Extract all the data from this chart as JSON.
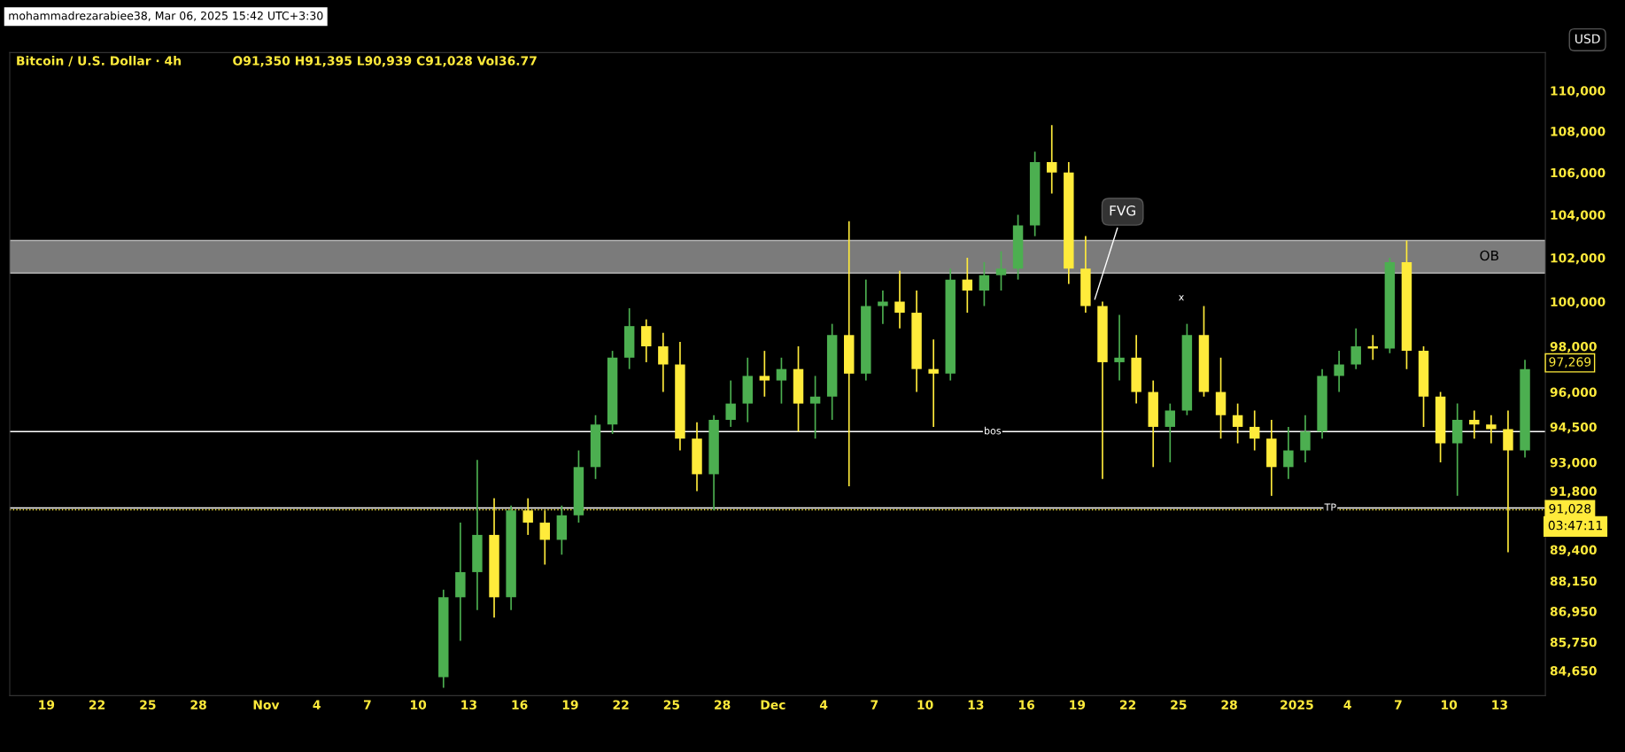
{
  "chart_data": {
    "type": "candlestick",
    "title": "Bitcoin / U.S. Dollar · 4h",
    "subtitle": "O91,350 H91,395 L90,939 C91,028 Vol36.77",
    "x": [
      "2024-11-11T12:00",
      "2024-11-12T12:00",
      "2024-11-13T12:00",
      "2024-11-14T12:00",
      "2024-11-15T12:00",
      "2024-11-16T12:00",
      "2024-11-17T12:00",
      "2024-11-18T12:00",
      "2024-11-19T12:00",
      "2024-11-20T12:00",
      "2024-11-21T12:00",
      "2024-11-22T12:00",
      "2024-11-23T12:00",
      "2024-11-24T12:00",
      "2024-11-25T12:00",
      "2024-11-26T12:00",
      "2024-11-27T12:00",
      "2024-11-28T12:00",
      "2024-11-29T12:00",
      "2024-11-30T12:00",
      "2024-12-01T12:00",
      "2024-12-02T12:00",
      "2024-12-03T12:00",
      "2024-12-04T12:00",
      "2024-12-05T12:00",
      "2024-12-06T12:00",
      "2024-12-07T12:00",
      "2024-12-08T12:00",
      "2024-12-09T12:00",
      "2024-12-10T12:00",
      "2024-12-11T12:00",
      "2024-12-12T12:00",
      "2024-12-13T12:00",
      "2024-12-14T12:00",
      "2024-12-15T12:00",
      "2024-12-16T12:00",
      "2024-12-17T12:00",
      "2024-12-18T12:00",
      "2024-12-19T12:00",
      "2024-12-20T12:00",
      "2024-12-21T12:00",
      "2024-12-22T12:00",
      "2024-12-23T12:00",
      "2024-12-24T12:00",
      "2024-12-25T12:00",
      "2024-12-26T12:00",
      "2024-12-27T12:00",
      "2024-12-28T12:00",
      "2024-12-29T12:00",
      "2024-12-30T12:00",
      "2024-12-31T12:00",
      "2025-01-01T12:00",
      "2025-01-02T12:00",
      "2025-01-03T12:00",
      "2025-01-04T12:00",
      "2025-01-05T12:00",
      "2025-01-06T12:00",
      "2025-01-07T12:00",
      "2025-01-08T12:00",
      "2025-01-09T12:00",
      "2025-01-10T12:00",
      "2025-01-11T12:00",
      "2025-01-12T12:00",
      "2025-01-13T12:00",
      "2025-01-14T12:00"
    ],
    "ohlc": [
      [
        84400,
        87800,
        84000,
        87500
      ],
      [
        87500,
        90500,
        85800,
        88500
      ],
      [
        88500,
        93100,
        87000,
        90000
      ],
      [
        90000,
        91500,
        86700,
        87500
      ],
      [
        87500,
        91200,
        87000,
        91000
      ],
      [
        91000,
        91500,
        90000,
        90500
      ],
      [
        90500,
        91000,
        88800,
        89800
      ],
      [
        89800,
        91200,
        89200,
        90800
      ],
      [
        90800,
        93500,
        90500,
        92800
      ],
      [
        92800,
        95000,
        92300,
        94600
      ],
      [
        94600,
        97800,
        94200,
        97500
      ],
      [
        97500,
        99700,
        97000,
        98900
      ],
      [
        98900,
        99200,
        97300,
        98000
      ],
      [
        98000,
        98600,
        96000,
        97200
      ],
      [
        97200,
        98200,
        93500,
        94000
      ],
      [
        94000,
        94700,
        91800,
        92500
      ],
      [
        92500,
        95000,
        91000,
        94800
      ],
      [
        94800,
        96500,
        94500,
        95500
      ],
      [
        95500,
        97500,
        94700,
        96700
      ],
      [
        96700,
        97800,
        95800,
        96500
      ],
      [
        96500,
        97500,
        95500,
        97000
      ],
      [
        97000,
        98000,
        94300,
        95500
      ],
      [
        95500,
        96700,
        94000,
        95800
      ],
      [
        95800,
        99000,
        94800,
        98500
      ],
      [
        98500,
        103700,
        92000,
        96800
      ],
      [
        96800,
        101000,
        96500,
        99800
      ],
      [
        99800,
        100500,
        99000,
        100000
      ],
      [
        100000,
        101400,
        98800,
        99500
      ],
      [
        99500,
        100500,
        96000,
        97000
      ],
      [
        97000,
        98300,
        94500,
        96800
      ],
      [
        96800,
        101500,
        96500,
        101000
      ],
      [
        101000,
        102000,
        99500,
        100500
      ],
      [
        100500,
        101800,
        99800,
        101200
      ],
      [
        101200,
        102300,
        100500,
        101500
      ],
      [
        101500,
        104000,
        101000,
        103500
      ],
      [
        103500,
        107000,
        103000,
        106500
      ],
      [
        106500,
        108300,
        105000,
        106000
      ],
      [
        106000,
        106500,
        100800,
        101500
      ],
      [
        101500,
        103000,
        99500,
        99800
      ],
      [
        99800,
        100000,
        92300,
        97300
      ],
      [
        97300,
        99400,
        96500,
        97500
      ],
      [
        97500,
        98500,
        95500,
        96000
      ],
      [
        96000,
        96500,
        92800,
        94500
      ],
      [
        94500,
        95500,
        93000,
        95200
      ],
      [
        95200,
        99000,
        95000,
        98500
      ],
      [
        98500,
        99800,
        95800,
        96000
      ],
      [
        96000,
        97500,
        94000,
        95000
      ],
      [
        95000,
        95500,
        93800,
        94500
      ],
      [
        94500,
        95200,
        93500,
        94000
      ],
      [
        94000,
        94800,
        91600,
        92800
      ],
      [
        92800,
        94500,
        92300,
        93500
      ],
      [
        93500,
        95000,
        93000,
        94300
      ],
      [
        94300,
        97000,
        94000,
        96700
      ],
      [
        96700,
        97800,
        96000,
        97200
      ],
      [
        97200,
        98800,
        97000,
        98000
      ],
      [
        98000,
        98500,
        97400,
        97900
      ],
      [
        97900,
        102000,
        97700,
        101800
      ],
      [
        101800,
        102800,
        97000,
        97800
      ],
      [
        97800,
        98000,
        94500,
        95800
      ],
      [
        95800,
        96000,
        93000,
        93800
      ],
      [
        93800,
        95500,
        91600,
        94800
      ],
      [
        94800,
        95200,
        94000,
        94600
      ],
      [
        94600,
        95000,
        93800,
        94400
      ],
      [
        94400,
        95200,
        89300,
        93500
      ],
      [
        93500,
        97400,
        93200,
        97000
      ]
    ],
    "colors": [
      "#4caf50",
      "#4caf50",
      "#4caf50",
      "#ffeb3b",
      "#4caf50",
      "#ffeb3b",
      "#ffeb3b",
      "#4caf50",
      "#4caf50",
      "#4caf50",
      "#4caf50",
      "#4caf50",
      "#ffeb3b",
      "#ffeb3b",
      "#ffeb3b",
      "#ffeb3b",
      "#4caf50",
      "#4caf50",
      "#4caf50",
      "#ffeb3b",
      "#4caf50",
      "#ffeb3b",
      "#4caf50",
      "#4caf50",
      "#ffeb3b",
      "#4caf50",
      "#4caf50",
      "#ffeb3b",
      "#ffeb3b",
      "#ffeb3b",
      "#4caf50",
      "#ffeb3b",
      "#4caf50",
      "#4caf50",
      "#4caf50",
      "#4caf50",
      "#ffeb3b",
      "#ffeb3b",
      "#ffeb3b",
      "#ffeb3b",
      "#4caf50",
      "#ffeb3b",
      "#ffeb3b",
      "#4caf50",
      "#4caf50",
      "#ffeb3b",
      "#ffeb3b",
      "#ffeb3b",
      "#ffeb3b",
      "#ffeb3b",
      "#4caf50",
      "#4caf50",
      "#4caf50",
      "#4caf50",
      "#4caf50",
      "#ffeb3b",
      "#4caf50",
      "#ffeb3b",
      "#ffeb3b",
      "#ffeb3b",
      "#4caf50",
      "#ffeb3b",
      "#ffeb3b",
      "#ffeb3b",
      "#4caf50"
    ],
    "log": "y",
    "xlim": [
      "2024-10-16T20:00",
      "2025-01-15T17:00"
    ],
    "xticks": [
      {
        "value": "2024-10-19",
        "label": "19"
      },
      {
        "value": "2024-10-22",
        "label": "22"
      },
      {
        "value": "2024-10-25",
        "label": "25"
      },
      {
        "value": "2024-10-28",
        "label": "28"
      },
      {
        "value": "2024-11-01",
        "label": "Nov"
      },
      {
        "value": "2024-11-04",
        "label": "4"
      },
      {
        "value": "2024-11-07",
        "label": "7"
      },
      {
        "value": "2024-11-10",
        "label": "10"
      },
      {
        "value": "2024-11-13",
        "label": "13"
      },
      {
        "value": "2024-11-16",
        "label": "16"
      },
      {
        "value": "2024-11-19",
        "label": "19"
      },
      {
        "value": "2024-11-22",
        "label": "22"
      },
      {
        "value": "2024-11-25",
        "label": "25"
      },
      {
        "value": "2024-11-28",
        "label": "28"
      },
      {
        "value": "2024-12-01",
        "label": "Dec"
      },
      {
        "value": "2024-12-04",
        "label": "4"
      },
      {
        "value": "2024-12-07",
        "label": "7"
      },
      {
        "value": "2024-12-10",
        "label": "10"
      },
      {
        "value": "2024-12-13",
        "label": "13"
      },
      {
        "value": "2024-12-16",
        "label": "16"
      },
      {
        "value": "2024-12-19",
        "label": "19"
      },
      {
        "value": "2024-12-22",
        "label": "22"
      },
      {
        "value": "2024-12-25",
        "label": "25"
      },
      {
        "value": "2024-12-28",
        "label": "28"
      },
      {
        "value": "2025-01-01",
        "label": "2025"
      },
      {
        "value": "2025-01-04",
        "label": "4"
      },
      {
        "value": "2025-01-07",
        "label": "7"
      },
      {
        "value": "2025-01-10",
        "label": "10"
      },
      {
        "value": "2025-01-13",
        "label": "13"
      }
    ],
    "ylim": [
      83700,
      111900
    ],
    "yticks": [
      {
        "value": 84650,
        "label": "84,650"
      },
      {
        "value": 85750,
        "label": "85,750"
      },
      {
        "value": 86950,
        "label": "86,950"
      },
      {
        "value": 88150,
        "label": "88,150"
      },
      {
        "value": 89400,
        "label": "89,400"
      },
      {
        "value": 91800,
        "label": "91,800"
      },
      {
        "value": 93000,
        "label": "93,000"
      },
      {
        "value": 94500,
        "label": "94,500"
      },
      {
        "value": 96000,
        "label": "96,000"
      },
      {
        "value": 98000,
        "label": "98,000"
      },
      {
        "value": 100000,
        "label": "100,000"
      },
      {
        "value": 102000,
        "label": "102,000"
      },
      {
        "value": 104000,
        "label": "104,000"
      },
      {
        "value": 106000,
        "label": "106,000"
      },
      {
        "value": 108000,
        "label": "108,000"
      },
      {
        "value": 110000,
        "label": "110,000"
      }
    ],
    "ref_lines": [
      {
        "axis": "y",
        "value": 94300,
        "label": "bos",
        "color": "#ffffff",
        "line_style": "solid"
      },
      {
        "axis": "y",
        "value": 91100,
        "label": "TP",
        "color": "#ffffff",
        "line_style": "solid"
      },
      {
        "axis": "y",
        "value": 91028,
        "label": "91,028",
        "color": "#ffeb3b",
        "line_style": "dotted"
      }
    ],
    "bands": [
      {
        "axis": "y",
        "from": 101300,
        "to": 102800,
        "label": "OB",
        "color": "#b0b0b0"
      }
    ],
    "annotations": [
      {
        "text": "FVG",
        "x": "2024-12-20T00:00",
        "y": 100000
      },
      "x",
      {
        "text": "97,269",
        "x": "2025-01-14T12:00",
        "y": 97269
      },
      "mohammadrezarabiee38, Mar 06, 2025 15:42 UTC+3:30",
      "USD",
      "03:47:11"
    ]
  }
}
